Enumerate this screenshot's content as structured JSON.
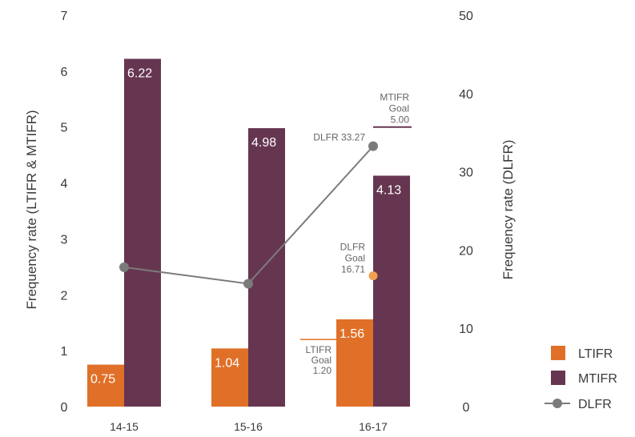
{
  "chart_data": {
    "type": "bar",
    "categories": [
      "14-15",
      "15-16",
      "16-17"
    ],
    "series": [
      {
        "name": "LTIFR",
        "type": "bar",
        "axis": "left",
        "color": "#e07028",
        "values": [
          0.75,
          1.04,
          1.56
        ],
        "labels": [
          "0.75",
          "1.04",
          "1.56"
        ]
      },
      {
        "name": "MTIFR",
        "type": "bar",
        "axis": "left",
        "color": "#663651",
        "values": [
          6.22,
          4.98,
          4.13
        ],
        "labels": [
          "6.22",
          "4.98",
          "4.13"
        ]
      },
      {
        "name": "DLFR",
        "type": "line",
        "axis": "right",
        "color": "#7b7b7b",
        "values": [
          17.8,
          15.7,
          33.27
        ]
      }
    ],
    "y_left": {
      "label": "Frequency rate (LTIFR & MTIFR)",
      "ylim": [
        0,
        7
      ],
      "ticks": [
        "0",
        "1",
        "2",
        "3",
        "4",
        "5",
        "6",
        "7"
      ]
    },
    "y_right": {
      "label": "Frequency rate (DLFR)",
      "ylim": [
        0,
        50
      ],
      "ticks": [
        "0",
        "10",
        "20",
        "30",
        "40",
        "50"
      ]
    },
    "annotations": {
      "dlfr_value": {
        "text": "DLFR 33.27"
      },
      "mtifr_goal": {
        "lines": [
          "MTIFR",
          "Goal",
          "5.00"
        ],
        "value": 5.0,
        "axis": "left",
        "color": "#663651"
      },
      "ltifr_goal": {
        "lines": [
          "LTIFR",
          "Goal",
          "1.20"
        ],
        "value": 1.2,
        "axis": "left",
        "color": "#e07028"
      },
      "dlfr_goal": {
        "lines": [
          "DLFR",
          "Goal",
          "16.71"
        ],
        "value": 16.71,
        "axis": "right",
        "color": "#f0a050"
      }
    },
    "legend": {
      "position": "bottom-right",
      "items": [
        "LTIFR",
        "MTIFR",
        "DLFR"
      ]
    },
    "grid": false
  }
}
